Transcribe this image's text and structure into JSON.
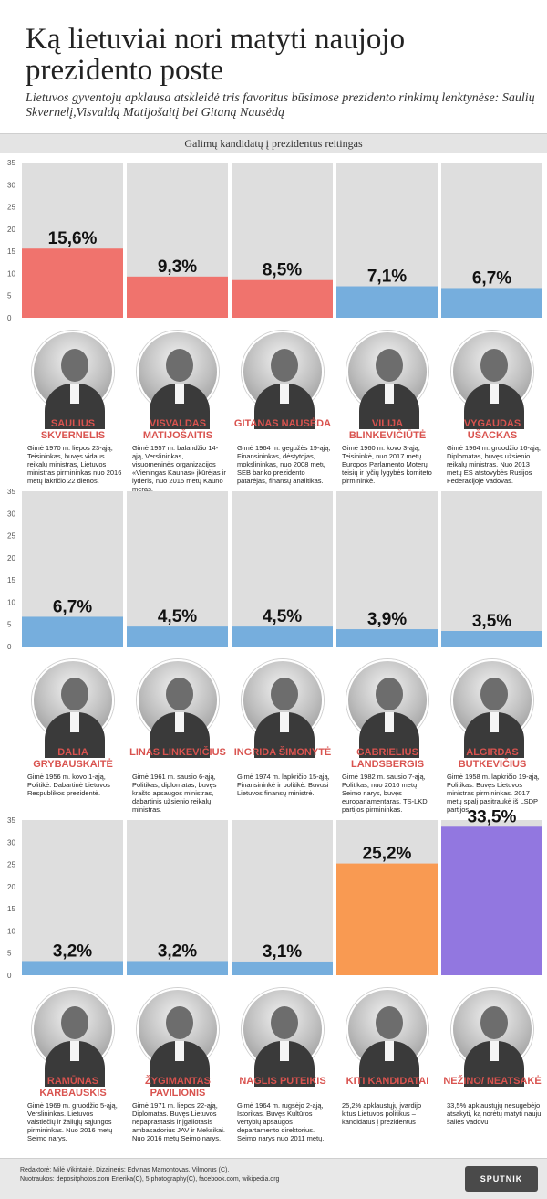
{
  "header": {
    "title": "Ką lietuviai nori matyti naujojo prezidento poste",
    "subtitle": "Lietuvos gyventojų apklausa atskleidė tris favoritus būsimose prezidento rinkimų lenktynėse: Saulių Skvernelį,Visvaldą Matijošaitį bei Gitaną Nausėdą"
  },
  "chart_heading": "Galimų kandidatų į prezidentus reitingas",
  "colors": {
    "red": "#f0736d",
    "blue": "#76aedd",
    "orange": "#f99a52",
    "purple": "#9277e0",
    "column_bg": "#dedede",
    "name_red": "#d9534f"
  },
  "chart_data": {
    "type": "bar",
    "ylim": [
      0,
      35
    ],
    "yticks": [
      "0",
      "5",
      "10",
      "15",
      "20",
      "25",
      "30",
      "35"
    ],
    "categories": [
      "SAULIUS SKVERNELIS",
      "VISVALDAS MATIJOŠAITIS",
      "GITANAS NAUSĖDA",
      "VILIJA BLINKEVIČIŪTĖ",
      "VYGAUDAS UŠACKAS",
      "DALIA GRYBAUSKAITĖ",
      "LINAS LINKEVIČIUS",
      "INGRIDA ŠIMONYTĖ",
      "GABRIELIUS LANDSBERGIS",
      "ALGIRDAS BUTKEVIČIUS",
      "RAMŪNAS KARBAUSKIS",
      "ŽYGIMANTAS PAVILIONIS",
      "NAGLIS PUTEIKIS",
      "KITI KANDIDATAI",
      "NEŽINO/ NEATSAKĖ"
    ],
    "values": [
      15.6,
      9.3,
      8.5,
      7.1,
      6.7,
      6.7,
      4.5,
      4.5,
      3.9,
      3.5,
      3.2,
      3.2,
      3.1,
      25.2,
      33.5
    ],
    "value_labels": [
      "15,6%",
      "9,3%",
      "8,5%",
      "7,1%",
      "6,7%",
      "6,7%",
      "4,5%",
      "4,5%",
      "3,9%",
      "3,5%",
      "3,2%",
      "3,2%",
      "3,1%",
      "25,2%",
      "33,5%"
    ],
    "bar_colors": [
      "red",
      "red",
      "red",
      "blue",
      "blue",
      "blue",
      "blue",
      "blue",
      "blue",
      "blue",
      "blue",
      "blue",
      "blue",
      "orange",
      "purple"
    ]
  },
  "candidates": [
    {
      "name": "SAULIUS SKVERNELIS",
      "bio": "Gimė 1970 m. liepos 23-ąją, Teisininkas, buvęs vidaus reikalų ministras, Lietuvos ministras pirmininkas nuo 2016 metų lakričio 22 dienos."
    },
    {
      "name": "VISVALDAS MATIJOŠAITIS",
      "bio": "Gimė 1957 m. balandžio 14-ąją, Verslininkas, visuomeninės organizacijos «Vieningas Kaunas» įkūrėjas ir lyderis, nuo 2015 metų Kauno meras."
    },
    {
      "name": "GITANAS NAUSĖDA",
      "bio": "Gimė 1964 m. gegužės 19-ąją, Finansininkas, dėstytojas, mokslininkas, nuo 2008 metų SEB banko prezidento patarėjas, finansų analitikas."
    },
    {
      "name": "VILIJA BLINKEVIČIŪTĖ",
      "bio": "Gimė 1960 m. kovo 3-ąją, Teisininkė, nuo 2017 metų Europos Parlamento Moterų teisių ir lyčių lygybės komiteto pirmininkė."
    },
    {
      "name": "VYGAUDAS UŠACKAS",
      "bio": "Gimė 1964 m. gruodžio 16-ąją, Diplomatas, buvęs užsienio reikalų ministras. Nuo 2013 metų ES atstovybės Rusijos Federacijoje vadovas."
    },
    {
      "name": "DALIA GRYBAUSKAITĖ",
      "bio": "Gimė 1956 m. kovo 1-ąją, Politikė. Dabartinė Lietuvos Respublikos prezidentė."
    },
    {
      "name": "LINAS LINKEVIČIUS",
      "bio": "Gimė 1961 m. sausio 6-ąją, Politikas, diplomatas, buvęs krašto apsaugos ministras, dabartinis užsienio reikalų ministras."
    },
    {
      "name": "INGRIDA ŠIMONYTĖ",
      "bio": "Gimė 1974 m. lapkričio 15-ąją, Finansininkė ir politikė. Buvusi Lietuvos finansų ministrė."
    },
    {
      "name": "GABRIELIUS LANDSBERGIS",
      "bio": "Gimė 1982 m. sausio 7-ąją, Politikas, nuo 2016 metų Seimo narys, buvęs europarlamentaras. TS-LKD partijos pirmininkas."
    },
    {
      "name": "ALGIRDAS BUTKEVIČIUS",
      "bio": "Gimė 1958 m. lapkričio 19-ąją, Politikas. Buvęs Lietuvos ministras pirmininkas. 2017 metų spalį pasitraukė iš LSDP partijos."
    },
    {
      "name": "RAMŪNAS KARBAUSKIS",
      "bio": "Gimė 1969 m. gruodžio 5-ąją, Verslininkas. Lietuvos valstiečių ir žaliųjų sąjungos pirmininkas. Nuo 2016 metų Seimo narys."
    },
    {
      "name": "ŽYGIMANTAS PAVILIONIS",
      "bio": "Gimė 1971 m. liepos 22-ąją, Diplomatas. Buvęs Lietuvos nepaprastasis ir įgaliotasis ambasadorius JAV ir Meksikai. Nuo 2016 metų Seimo narys."
    },
    {
      "name": "NAGLIS PUTEIKIS",
      "bio": "Gimė 1964 m. rugsėjo 2-ąją, Istorikas. Buvęs Kultūros vertybių apsaugos departamento direktorius. Seimo narys nuo 2011 metų."
    },
    {
      "name": "KITI KANDIDATAI",
      "bio": "25,2% apklaustųjų įvardijo kitus Lietuvos politikus – kandidatus į prezidentus"
    },
    {
      "name": "NEŽINO/ NEATSAKĖ",
      "bio": "33,5% apklaustųjų nesugebėjo atsakyti, ką norėtų matyti nauju šalies vadovu"
    }
  ],
  "footer": {
    "line1": "Redaktorė: Milė Vikintaitė. Dizaineris: Edvinas Mamontovas. Vilmorus (C).",
    "line2": "Nuotraukos: depositphotos.com Erierika(C), 5Iphotography(C), facebook.com, wikipedia.org",
    "logo": "SPUTNIK"
  }
}
